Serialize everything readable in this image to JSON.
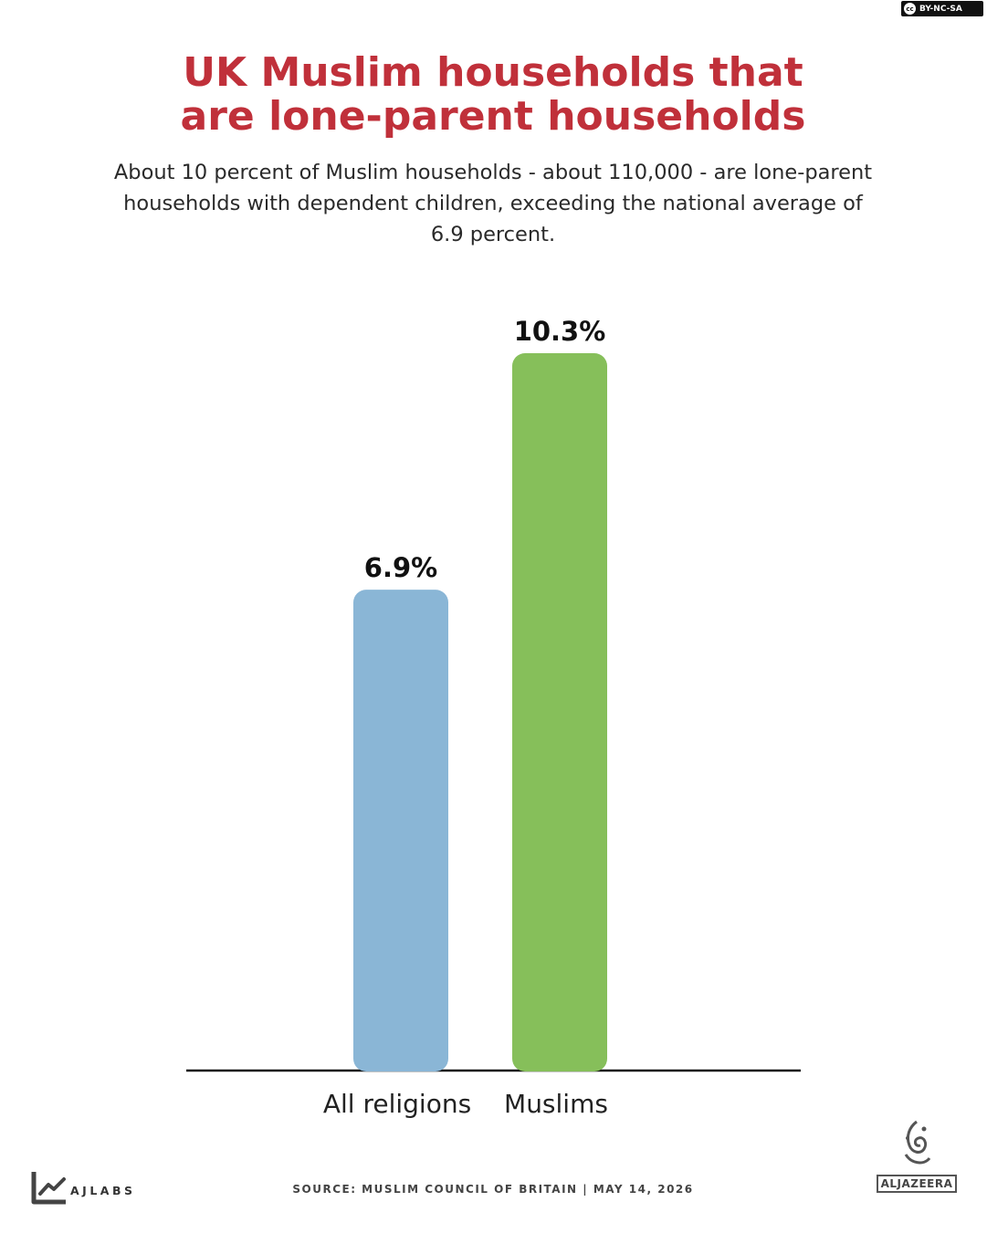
{
  "license_badge": "BY-NC-SA",
  "title_line1": "UK Muslim households that",
  "title_line2": "are lone-parent households",
  "subtitle": "About 10 percent of Muslim households - about 110,000 - are lone-parent households with dependent children, exceeding the national average of 6.9 percent.",
  "footer": {
    "brand": "AJLABS",
    "source": "SOURCE:  MUSLIM COUNCIL OF BRITAIN  |  MAY 14, 2026",
    "publisher": "ALJAZEERA"
  },
  "colors": {
    "title": "#c0303a",
    "all_religions": "#8ab6d6",
    "muslims": "#86bf5a"
  },
  "chart_data": {
    "type": "bar",
    "categories": [
      "All religions",
      "Muslims"
    ],
    "values": [
      6.9,
      10.3
    ],
    "value_labels": [
      "6.9%",
      "10.3%"
    ],
    "bar_colors": [
      "#8ab6d6",
      "#86bf5a"
    ],
    "ylim": [
      0,
      10.3
    ],
    "grid": false,
    "legend": "none"
  }
}
